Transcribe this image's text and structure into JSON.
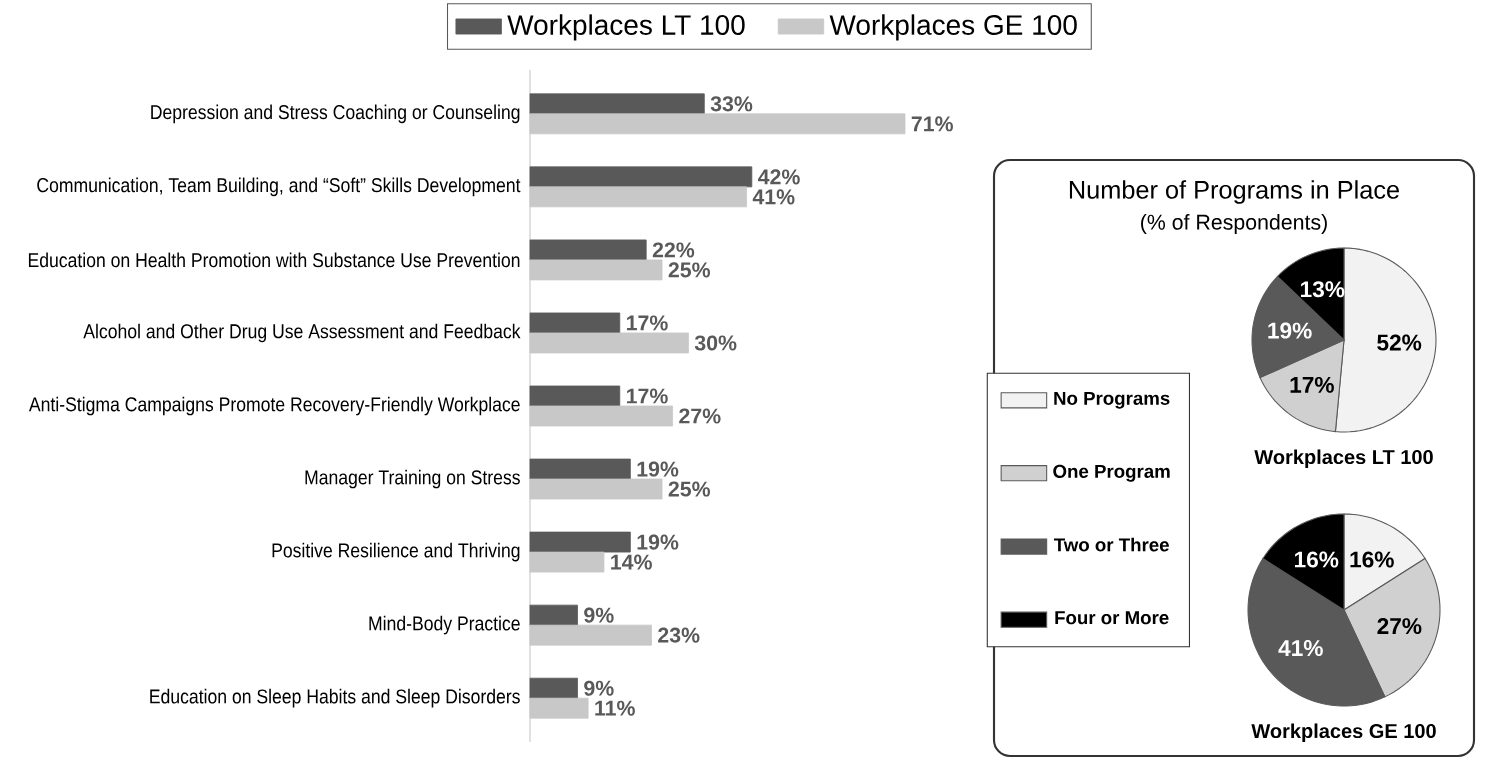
{
  "chart_data": [
    {
      "type": "bar",
      "orientation": "horizontal",
      "legend": "top",
      "categories": [
        "Depression and Stress Coaching or Counseling",
        "Communication, Team Building, and “Soft” Skills Development",
        "Education on Health Promotion with Substance Use Prevention",
        "Alcohol and Other Drug Use Assessment and Feedback",
        "Anti-Stigma Campaigns Promote Recovery-Friendly Workplace",
        "Manager Training on Stress",
        "Positive Resilience and Thriving",
        "Mind-Body Practice",
        "Education on Sleep Habits and Sleep Disorders"
      ],
      "series": [
        {
          "name": "Workplaces LT 100",
          "color": "#595959",
          "values": [
            33,
            42,
            22,
            17,
            17,
            19,
            19,
            9,
            9
          ],
          "value_labels": [
            "33%",
            "42%",
            "22%",
            "17%",
            "17%",
            "19%",
            "19%",
            "9%",
            "9%"
          ]
        },
        {
          "name": "Workplaces GE 100",
          "color": "#c8c8c8",
          "values": [
            71,
            41,
            25,
            30,
            27,
            25,
            14,
            23,
            11
          ],
          "value_labels": [
            "71%",
            "41%",
            "25%",
            "30%",
            "27%",
            "25%",
            "14%",
            "23%",
            "11%"
          ]
        }
      ]
    },
    {
      "type": "pie",
      "title": "Number of Programs in Place",
      "subtitle": "(% of Respondents)",
      "xlabel": "Workplaces LT 100",
      "legend": "left",
      "categories": [
        "No Programs",
        "One Program",
        "Two or Three",
        "Four or More"
      ],
      "values": [
        52,
        17,
        19,
        13
      ],
      "value_labels": [
        "52%",
        "17%",
        "19%",
        "13%"
      ],
      "colors": [
        "#f2f2f2",
        "#d0d0d0",
        "#595959",
        "#000000"
      ]
    },
    {
      "type": "pie",
      "xlabel": "Workplaces GE 100",
      "categories": [
        null,
        null,
        null,
        null
      ],
      "values": [
        16,
        27,
        41,
        16
      ],
      "value_labels": [
        "16%",
        "27%",
        "41%",
        "16%"
      ],
      "colors": [
        "#f2f2f2",
        "#d0d0d0",
        "#595959",
        "#000000"
      ]
    }
  ]
}
